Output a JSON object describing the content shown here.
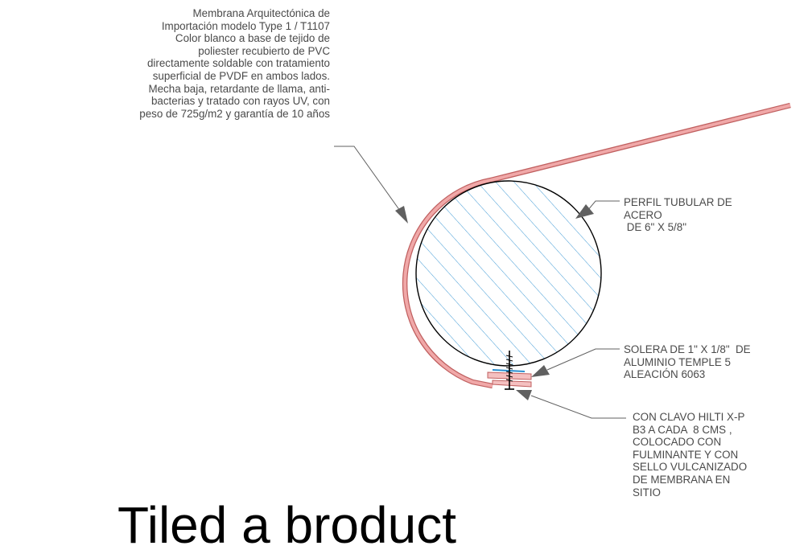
{
  "notes": {
    "membrane": "Membrana Arquitectónica de\nImportación modelo Type 1 / T1107\nColor blanco a base de tejido de\npoliester recubierto de PVC\ndirectamente soldable con tratamiento\nsuperficial de PVDF en ambos lados.\nMecha baja, retardante de llama, anti-\nbacterias y tratado con rayos UV, con\npeso de 725g/m2 y garantía de 10 años",
    "tube": "PERFIL TUBULAR DE\nACERO\n DE 6\" X 5/8\"",
    "solera": "SOLERA DE 1\" X 1/8\"  DE\nALUMINIO TEMPLE 5\nALEACIÓN 6063",
    "clavo": "CON CLAVO HILTI X-P\nB3 A CADA  8 CMS ,\nCOLOCADO CON\nFULMINANTE Y CON\nSELLO VULCANIZADO\nDE MEMBRANA EN\nSITIO"
  },
  "bottom_title": "Tiled a broduct",
  "colors": {
    "membrane_fill": "#f0a8a8",
    "membrane_stroke": "#c06060",
    "hatch": "#2a8fd0",
    "line": "#000000",
    "leader": "#606060",
    "text": "#4a4a4a"
  }
}
